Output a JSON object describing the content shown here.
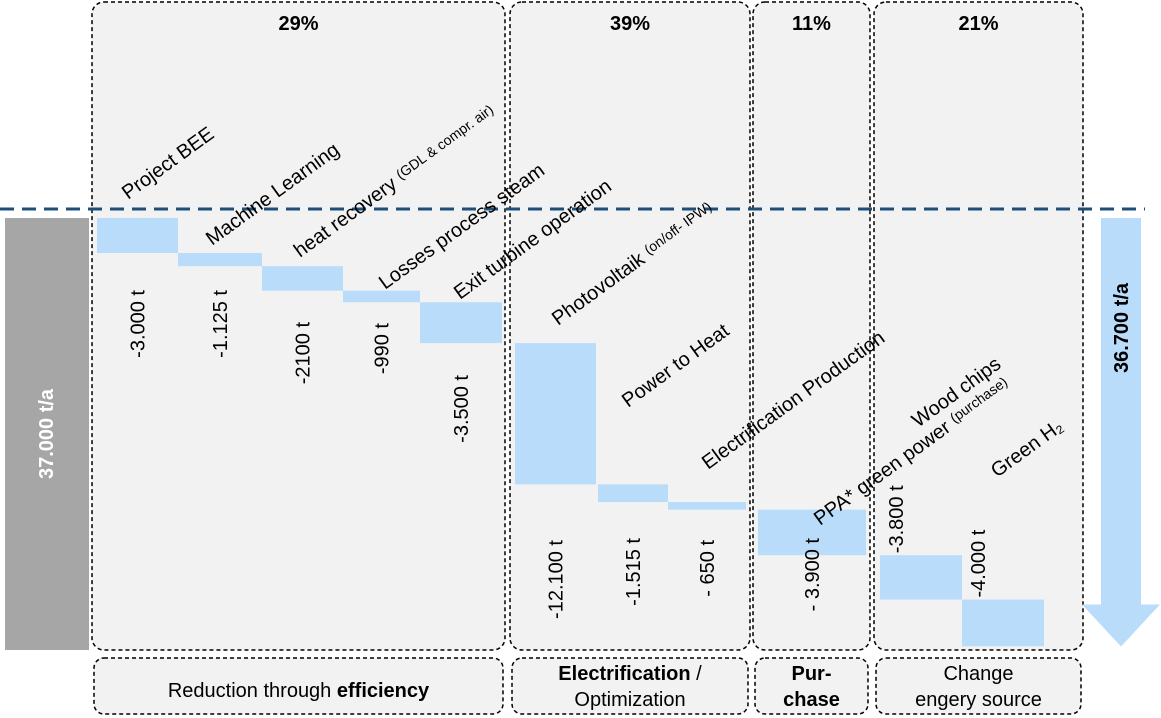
{
  "chart_data": {
    "type": "waterfall",
    "bar_color": "#b9dcfb",
    "start": {
      "value": 37000,
      "label": "37.000 t/a",
      "color": "#a6a6a6"
    },
    "end": {
      "value": 36700,
      "label": "36.700 t/a"
    },
    "groups": [
      {
        "share": 29,
        "share_label": "29%",
        "label": [
          [
            {
              "text": "Reduction through "
            },
            {
              "text": "efficiency",
              "bold": true
            }
          ]
        ],
        "steps": [
          {
            "category": "Project BEE",
            "value": -3000,
            "value_label": "-3.000 t"
          },
          {
            "category": "Machine Learning",
            "value": -1125,
            "value_label": "-1.125 t"
          },
          {
            "category": "heat recovery",
            "note": "(GDL & compr. air)",
            "value": -2100,
            "value_label": "-2100 t"
          },
          {
            "category": "Losses process steam",
            "value": -990,
            "value_label": "-990 t"
          },
          {
            "category": "Exit turbine operation",
            "value": -3500,
            "value_label": "-3.500 t"
          }
        ]
      },
      {
        "share": 39,
        "share_label": "39%",
        "label": [
          [
            {
              "text": "Electrification",
              "bold": true
            },
            {
              "text": " /"
            }
          ],
          [
            {
              "text": "Optimization"
            }
          ]
        ],
        "steps": [
          {
            "category": "Photovoltaik",
            "note": "(on/off- IPW)",
            "value": -12100,
            "value_label": "-12.100 t"
          },
          {
            "category": "Power to Heat",
            "value": -1515,
            "value_label": "-1.515 t"
          },
          {
            "category": "Electrification Production",
            "value": -650,
            "value_label": "- 650 t"
          }
        ]
      },
      {
        "share": 11,
        "share_label": "11%",
        "label": [
          [
            {
              "text": "Pur-",
              "bold": true
            }
          ],
          [
            {
              "text": "chase",
              "bold": true
            }
          ]
        ],
        "steps": [
          {
            "category": "PPA* green power",
            "note": "(purchase)",
            "value": -3900,
            "value_label": "- 3.900 t"
          }
        ]
      },
      {
        "share": 21,
        "share_label": "21%",
        "label": [
          [
            {
              "text": "Change"
            }
          ],
          [
            {
              "text": "engery source"
            }
          ]
        ],
        "steps": [
          {
            "category": "Wood chips",
            "value": -3800,
            "value_label": "-3.800 t"
          },
          {
            "category": "Green H₂",
            "value": -4000,
            "value_label": "-4.000 t"
          }
        ]
      }
    ]
  }
}
